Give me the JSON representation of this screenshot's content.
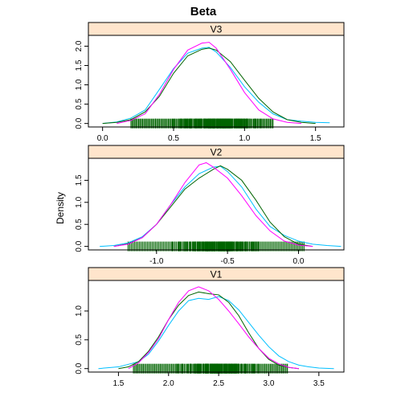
{
  "chart_data": {
    "type": "line",
    "title": "Beta",
    "ylabel": "Density",
    "series_colors": [
      "#00BFFF",
      "#006400",
      "#FF00FF"
    ],
    "panel_strip_color": "#FFE5CC",
    "rug_colors": [
      "#87CEEB",
      "#8A2BE2",
      "#FF69B4",
      "#1E90FF",
      "#006400"
    ],
    "panels": [
      {
        "label": "V3",
        "xlim": [
          -0.1,
          1.7
        ],
        "ylim": [
          -0.09,
          2.28
        ],
        "x_ticks": [
          0.0,
          0.5,
          1.0,
          1.5
        ],
        "x_tick_labels": [
          "0.0",
          "0.5",
          "1.0",
          "1.5"
        ],
        "y_ticks": [
          0.0,
          0.5,
          1.0,
          1.5,
          2.0
        ],
        "y_tick_labels": [
          "0.0",
          "0.5",
          "1.0",
          "1.5",
          "2.0"
        ],
        "rug_range": [
          0.1,
          1.5
        ],
        "rug_core": [
          0.2,
          1.2
        ],
        "series": [
          {
            "x": [
              0.0,
              0.1,
              0.2,
              0.3,
              0.4,
              0.5,
              0.6,
              0.7,
              0.75,
              0.8,
              0.9,
              1.0,
              1.1,
              1.2,
              1.3,
              1.4,
              1.5,
              1.6
            ],
            "y": [
              0.0,
              0.04,
              0.14,
              0.35,
              0.88,
              1.42,
              1.82,
              1.95,
              1.97,
              1.85,
              1.45,
              0.95,
              0.55,
              0.25,
              0.1,
              0.06,
              0.03,
              0.02
            ]
          },
          {
            "x": [
              0.0,
              0.1,
              0.2,
              0.3,
              0.4,
              0.5,
              0.6,
              0.7,
              0.75,
              0.8,
              0.9,
              1.0,
              1.1,
              1.2,
              1.3,
              1.4,
              1.5
            ],
            "y": [
              0.0,
              0.03,
              0.1,
              0.3,
              0.7,
              1.3,
              1.75,
              1.92,
              1.95,
              1.9,
              1.6,
              1.12,
              0.65,
              0.3,
              0.1,
              0.03,
              0.0
            ]
          },
          {
            "x": [
              0.1,
              0.2,
              0.3,
              0.4,
              0.5,
              0.6,
              0.7,
              0.75,
              0.8,
              0.9,
              1.0,
              1.1,
              1.2,
              1.3,
              1.4
            ],
            "y": [
              0.0,
              0.08,
              0.25,
              0.75,
              1.4,
              1.9,
              2.08,
              2.1,
              1.95,
              1.4,
              0.8,
              0.35,
              0.12,
              0.03,
              0.0
            ]
          }
        ]
      },
      {
        "label": "V2",
        "xlim": [
          -1.48,
          0.32
        ],
        "ylim": [
          -0.08,
          2.0
        ],
        "x_ticks": [
          -1.0,
          -0.5,
          0.0
        ],
        "x_tick_labels": [
          "-1.0",
          "-0.5",
          "0.0"
        ],
        "y_ticks": [
          0.0,
          0.5,
          1.0,
          1.5
        ],
        "y_tick_labels": [
          "0.0",
          "0.5",
          "1.0",
          "1.5"
        ],
        "rug_range": [
          -1.3,
          0.15
        ],
        "rug_core": [
          -1.2,
          0.05
        ],
        "series": [
          {
            "x": [
              -1.4,
              -1.3,
              -1.2,
              -1.1,
              -1.0,
              -0.9,
              -0.8,
              -0.7,
              -0.6,
              -0.55,
              -0.5,
              -0.4,
              -0.3,
              -0.2,
              -0.1,
              0.0,
              0.1,
              0.2,
              0.3
            ],
            "y": [
              0.0,
              0.02,
              0.08,
              0.22,
              0.5,
              0.95,
              1.35,
              1.65,
              1.8,
              1.82,
              1.7,
              1.35,
              0.85,
              0.45,
              0.25,
              0.12,
              0.05,
              0.02,
              0.0
            ]
          },
          {
            "x": [
              -1.3,
              -1.2,
              -1.1,
              -1.0,
              -0.9,
              -0.8,
              -0.7,
              -0.6,
              -0.55,
              -0.5,
              -0.4,
              -0.3,
              -0.2,
              -0.1,
              0.0,
              0.1
            ],
            "y": [
              0.0,
              0.06,
              0.2,
              0.5,
              0.9,
              1.3,
              1.55,
              1.75,
              1.83,
              1.75,
              1.5,
              1.05,
              0.55,
              0.22,
              0.05,
              0.0
            ]
          },
          {
            "x": [
              -1.3,
              -1.2,
              -1.1,
              -1.0,
              -0.9,
              -0.8,
              -0.7,
              -0.65,
              -0.6,
              -0.5,
              -0.4,
              -0.3,
              -0.2,
              -0.1,
              0.0,
              0.1
            ],
            "y": [
              0.0,
              0.05,
              0.2,
              0.5,
              0.95,
              1.45,
              1.85,
              1.9,
              1.8,
              1.55,
              1.15,
              0.7,
              0.35,
              0.12,
              0.03,
              0.0
            ]
          }
        ]
      },
      {
        "label": "V1",
        "xlim": [
          1.2,
          3.75
        ],
        "ylim": [
          -0.06,
          1.53
        ],
        "x_ticks": [
          1.5,
          2.0,
          2.5,
          3.0,
          3.5
        ],
        "x_tick_labels": [
          "1.5",
          "2.0",
          "2.5",
          "3.0",
          "3.5"
        ],
        "y_ticks": [
          0.0,
          0.5,
          1.0
        ],
        "y_tick_labels": [
          "0.0",
          "0.5",
          "1.0"
        ],
        "rug_range": [
          1.55,
          3.45
        ],
        "rug_core": [
          1.65,
          3.2
        ],
        "series": [
          {
            "x": [
              1.3,
              1.5,
              1.7,
              1.8,
              1.9,
              2.0,
              2.1,
              2.2,
              2.3,
              2.4,
              2.5,
              2.6,
              2.7,
              2.8,
              2.9,
              3.0,
              3.1,
              3.2,
              3.3,
              3.4,
              3.5,
              3.65
            ],
            "y": [
              0.0,
              0.03,
              0.12,
              0.25,
              0.48,
              0.75,
              1.0,
              1.18,
              1.22,
              1.2,
              1.25,
              1.18,
              1.02,
              0.8,
              0.58,
              0.38,
              0.22,
              0.12,
              0.06,
              0.03,
              0.01,
              0.0
            ]
          },
          {
            "x": [
              1.5,
              1.6,
              1.7,
              1.8,
              1.9,
              2.0,
              2.1,
              2.2,
              2.3,
              2.4,
              2.5,
              2.6,
              2.7,
              2.8,
              2.9,
              3.0,
              3.1,
              3.2,
              3.3
            ],
            "y": [
              0.0,
              0.03,
              0.12,
              0.3,
              0.55,
              0.85,
              1.1,
              1.27,
              1.33,
              1.3,
              1.28,
              1.15,
              0.92,
              0.62,
              0.35,
              0.16,
              0.06,
              0.02,
              0.0
            ]
          },
          {
            "x": [
              1.6,
              1.7,
              1.8,
              1.9,
              2.0,
              2.1,
              2.2,
              2.3,
              2.4,
              2.5,
              2.6,
              2.7,
              2.8,
              2.9,
              3.0,
              3.1,
              3.2,
              3.3
            ],
            "y": [
              0.0,
              0.1,
              0.28,
              0.52,
              0.85,
              1.15,
              1.35,
              1.42,
              1.35,
              1.2,
              1.0,
              0.78,
              0.55,
              0.35,
              0.18,
              0.08,
              0.02,
              0.0
            ]
          }
        ]
      }
    ]
  }
}
